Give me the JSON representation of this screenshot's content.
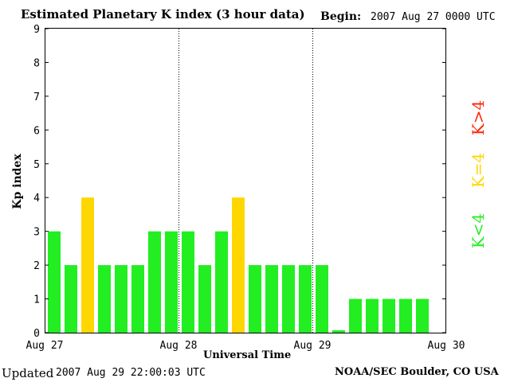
{
  "header": {
    "title": "Estimated Planetary K index (3 hour data)",
    "begin_label": "Begin:",
    "begin_value": "2007 Aug 27 0000 UTC"
  },
  "footer": {
    "updated_label": "Updated",
    "updated_value": "2007 Aug 29 22:00:03 UTC",
    "credit": "NOAA/SEC Boulder, CO USA"
  },
  "legend": {
    "high": "K>4",
    "equal": "K=4",
    "low": "K<4"
  },
  "colors": {
    "low": "#22ee22",
    "equal": "#ffd700",
    "high": "#ff2200"
  },
  "chart_data": {
    "type": "bar",
    "title": "Estimated Planetary K index (3 hour data)",
    "xlabel": "Universal Time",
    "ylabel": "Kp index",
    "ylim": [
      0,
      9
    ],
    "yticks": [
      0,
      1,
      2,
      3,
      4,
      5,
      6,
      7,
      8,
      9
    ],
    "xticks": [
      "Aug 27",
      "Aug 28",
      "Aug 29",
      "Aug 30"
    ],
    "day_separators": [
      "Aug 28",
      "Aug 29"
    ],
    "values": [
      3,
      2,
      4,
      2,
      2,
      2,
      3,
      3,
      3,
      2,
      3,
      4,
      2,
      2,
      2,
      2,
      2,
      0.07,
      1,
      1,
      1,
      1,
      1
    ]
  }
}
